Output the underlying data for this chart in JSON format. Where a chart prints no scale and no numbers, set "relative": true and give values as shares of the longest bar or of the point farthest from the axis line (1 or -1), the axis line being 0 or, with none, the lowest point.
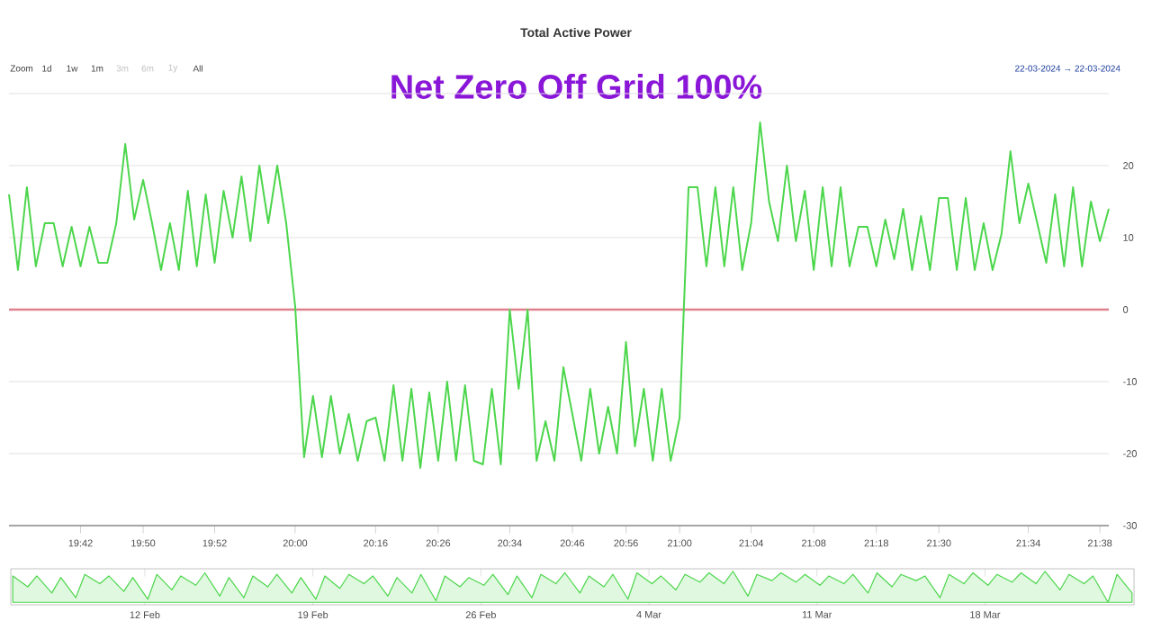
{
  "chart_data": [
    {
      "type": "line",
      "title": "Total Active Power",
      "subtitle": "Net Zero Off Grid 100%",
      "annotations": [
        "Zoom",
        "1d",
        "1w",
        "1m",
        "3m",
        "6m",
        "1y",
        "All",
        "22-03-2024 → 22-03-2024"
      ],
      "categories": [
        null,
        null,
        null,
        null,
        null,
        null,
        null,
        null,
        "19:42",
        null,
        null,
        null,
        null,
        null,
        null,
        "19:50",
        null,
        null,
        null,
        null,
        null,
        null,
        null,
        "19:52",
        null,
        null,
        null,
        null,
        null,
        null,
        null,
        null,
        "20:00",
        null,
        null,
        null,
        null,
        null,
        null,
        null,
        null,
        "20:16",
        null,
        null,
        null,
        null,
        null,
        null,
        "20:26",
        null,
        null,
        null,
        null,
        null,
        null,
        null,
        "20:34",
        null,
        null,
        null,
        null,
        null,
        null,
        "20:46",
        null,
        null,
        null,
        null,
        null,
        "20:56",
        null,
        null,
        null,
        null,
        null,
        "21:00",
        null,
        null,
        null,
        null,
        null,
        null,
        null,
        "21:04",
        null,
        null,
        null,
        null,
        null,
        null,
        "21:08",
        null,
        null,
        null,
        null,
        null,
        null,
        "21:18",
        null,
        null,
        null,
        null,
        null,
        null,
        "21:30",
        null,
        null,
        null,
        null,
        null,
        null,
        null,
        null,
        null,
        "21:34",
        null,
        null,
        null,
        null,
        null,
        null,
        null,
        "21:38",
        null
      ],
      "series": [
        {
          "color": "#4cd64c",
          "values": [
            16,
            5.5,
            17,
            6,
            12,
            12,
            6,
            11.5,
            6,
            11.5,
            6.5,
            6.5,
            12,
            23,
            12.5,
            18,
            12,
            5.5,
            12,
            5.5,
            16.5,
            6,
            16,
            6.5,
            16.5,
            10,
            18.5,
            9.5,
            20,
            12,
            20,
            12,
            0.5,
            -20.5,
            -12,
            -20.5,
            -12,
            -20,
            -14.5,
            -21,
            -15.5,
            -15,
            -21,
            -10.5,
            -21,
            -11,
            -22,
            -11.5,
            -21,
            -10,
            -21,
            -10.5,
            -21,
            -21.5,
            -11,
            -21.5,
            0,
            -11,
            0,
            -21,
            -15.5,
            -21,
            -8,
            -14.5,
            -21,
            -11,
            -20,
            -13.5,
            -20,
            -4.5,
            -19,
            -11,
            -21,
            -11,
            -21,
            -15,
            17,
            17,
            6,
            17,
            6,
            17,
            5.5,
            12,
            26,
            15,
            9.5,
            20,
            9.5,
            16.5,
            5.5,
            17,
            6,
            17,
            6,
            11.5,
            11.5,
            6,
            12.5,
            7,
            14,
            5.5,
            13,
            5.5,
            15.5,
            15.5,
            5.5,
            15.5,
            5.5,
            12,
            5.5,
            10.5,
            22,
            12,
            17.5,
            12,
            6.5,
            16,
            6,
            17,
            6,
            15,
            9.5,
            14
          ]
        }
      ],
      "ylim": [
        -30,
        30
      ],
      "yticks": [
        -30,
        -20,
        -10,
        0,
        10,
        20,
        {
          "value": 30,
          "label": null
        }
      ],
      "ref_lines": [
        {
          "axis": "y",
          "value": 0,
          "color": "#e0808f"
        }
      ],
      "grid": "y"
    },
    {
      "type": "area",
      "relative": true,
      "tick_labels": "x",
      "x": [
        "2024-02-06T12:00",
        "2024-02-07T03:00",
        "2024-02-07T12:00",
        "2024-02-08T03:00",
        "2024-02-08T12:00",
        "2024-02-09T03:00",
        "2024-02-09T12:00",
        "2024-02-10T03:00",
        "2024-02-10T12:00",
        "2024-02-11T03:00",
        "2024-02-11T12:00",
        "2024-02-12T03:00",
        "2024-02-12T12:00",
        "2024-02-13T03:00",
        "2024-02-13T12:00",
        "2024-02-14T03:00",
        "2024-02-14T12:00",
        "2024-02-15T03:00",
        "2024-02-15T12:00",
        "2024-02-16T03:00",
        "2024-02-16T12:00",
        "2024-02-17T03:00",
        "2024-02-17T12:00",
        "2024-02-18T03:00",
        "2024-02-18T12:00",
        "2024-02-19T03:00",
        "2024-02-19T12:00",
        "2024-02-20T03:00",
        "2024-02-20T12:00",
        "2024-02-21T03:00",
        "2024-02-21T12:00",
        "2024-02-22T03:00",
        "2024-02-22T12:00",
        "2024-02-23T03:00",
        "2024-02-23T12:00",
        "2024-02-24T03:00",
        "2024-02-24T12:00",
        "2024-02-25T03:00",
        "2024-02-25T12:00",
        "2024-02-26T03:00",
        "2024-02-26T12:00",
        "2024-02-27T03:00",
        "2024-02-27T12:00",
        "2024-02-28T03:00",
        "2024-02-28T12:00",
        "2024-02-29T03:00",
        "2024-02-29T12:00",
        "2024-03-01T03:00",
        "2024-03-01T12:00",
        "2024-03-02T03:00",
        "2024-03-02T12:00",
        "2024-03-03T03:00",
        "2024-03-03T12:00",
        "2024-03-04T03:00",
        "2024-03-04T12:00",
        "2024-03-05T03:00",
        "2024-03-05T12:00",
        "2024-03-06T03:00",
        "2024-03-06T12:00",
        "2024-03-07T03:00",
        "2024-03-07T12:00",
        "2024-03-08T03:00",
        "2024-03-08T12:00",
        "2024-03-09T03:00",
        "2024-03-09T12:00",
        "2024-03-10T03:00",
        "2024-03-10T12:00",
        "2024-03-11T03:00",
        "2024-03-11T12:00",
        "2024-03-12T03:00",
        "2024-03-12T12:00",
        "2024-03-13T03:00",
        "2024-03-13T12:00",
        "2024-03-14T03:00",
        "2024-03-14T12:00",
        "2024-03-15T03:00",
        "2024-03-15T12:00",
        "2024-03-16T03:00",
        "2024-03-16T12:00",
        "2024-03-17T03:00",
        "2024-03-17T12:00",
        "2024-03-18T03:00",
        "2024-03-18T12:00",
        "2024-03-19T03:00",
        "2024-03-19T12:00",
        "2024-03-20T03:00",
        "2024-03-20T12:00",
        "2024-03-21T03:00",
        "2024-03-21T12:00",
        "2024-03-22T03:00",
        "2024-03-22T12:00",
        "2024-03-23T03:00",
        "2024-03-23T12:00",
        "2024-03-24T03:00"
      ],
      "series": [
        {
          "color": "#4cd64c",
          "values": [
            0.85,
            0.5,
            0.85,
            0.3,
            0.8,
            0.15,
            0.9,
            0.6,
            0.85,
            0.35,
            0.8,
            0.1,
            0.9,
            0.4,
            0.85,
            0.55,
            0.95,
            0.2,
            0.8,
            0.15,
            0.85,
            0.5,
            0.9,
            0.3,
            0.8,
            0.1,
            0.85,
            0.45,
            0.9,
            0.6,
            0.85,
            0.2,
            0.8,
            0.3,
            0.9,
            0.05,
            0.85,
            0.5,
            0.8,
            0.55,
            0.9,
            0.25,
            0.85,
            0.15,
            0.9,
            0.6,
            0.95,
            0.3,
            0.85,
            0.5,
            0.9,
            0.1,
            0.95,
            0.6,
            0.85,
            0.4,
            0.9,
            0.65,
            0.95,
            0.6,
            1,
            0.2,
            0.9,
            0.7,
            0.95,
            0.65,
            0.9,
            0.55,
            0.85,
            0.6,
            0.9,
            0.3,
            0.95,
            0.5,
            0.9,
            0.7,
            0.85,
            0.15,
            0.9,
            0.6,
            0.95,
            0.55,
            0.9,
            0.65,
            0.95,
            0.6,
            1,
            0.4,
            0.9,
            0.6,
            0.85,
            0,
            0.9,
            0.3
          ]
        }
      ],
      "xlim": [
        "2024-02-06T10:00",
        "2024-03-24T05:00"
      ],
      "xticks": [
        {
          "value": "2024-02-12",
          "label": "12 Feb"
        },
        {
          "value": "2024-02-19",
          "label": "19 Feb"
        },
        {
          "value": "2024-02-26",
          "label": "26 Feb"
        },
        {
          "value": "2024-03-04",
          "label": "4 Mar"
        },
        {
          "value": "2024-03-11",
          "label": "11 Mar"
        },
        {
          "value": "2024-03-18",
          "label": "18 Mar"
        }
      ]
    }
  ]
}
